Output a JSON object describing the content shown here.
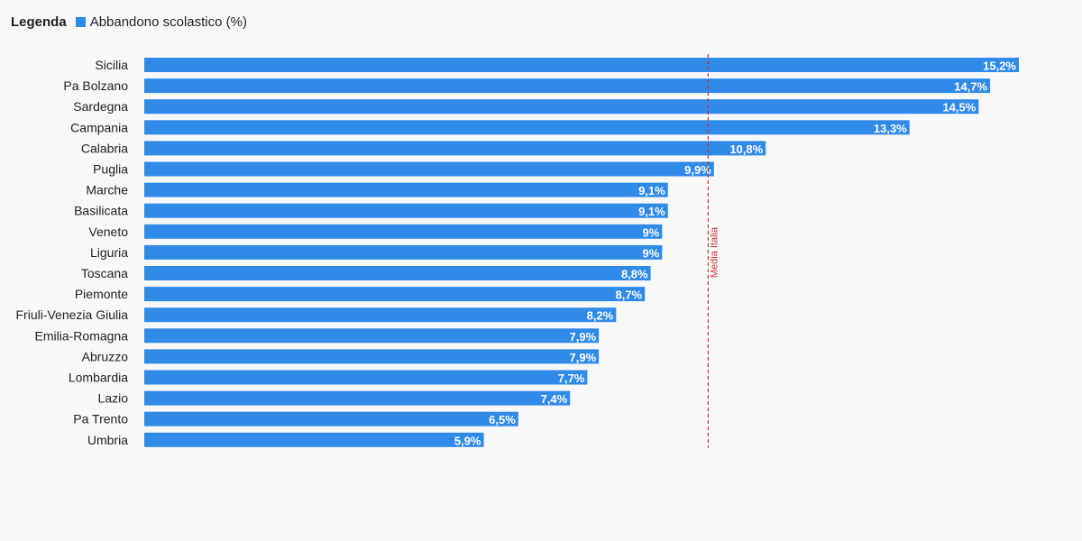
{
  "legend": {
    "title": "Legenda",
    "entry": "Abbandono scolastico (%)"
  },
  "colors": {
    "bar": "#2f8ae8",
    "reference_line": "#c8313c",
    "background": "#f8f8f8"
  },
  "chart_data": {
    "type": "bar",
    "orientation": "horizontal",
    "categories": [
      "Sicilia",
      "Pa Bolzano",
      "Sardegna",
      "Campania",
      "Calabria",
      "Puglia",
      "Marche",
      "Basilicata",
      "Veneto",
      "Liguria",
      "Toscana",
      "Piemonte",
      "Friuli-Venezia Giulia",
      "Emilia-Romagna",
      "Abruzzo",
      "Lombardia",
      "Lazio",
      "Pa Trento",
      "Umbria"
    ],
    "series": [
      {
        "name": "Abbandono scolastico (%)",
        "values": [
          15.2,
          14.7,
          14.5,
          13.3,
          10.8,
          9.9,
          9.1,
          9.1,
          9,
          9,
          8.8,
          8.7,
          8.2,
          7.9,
          7.9,
          7.7,
          7.4,
          6.5,
          5.9
        ]
      }
    ],
    "data_labels": [
      "15,2%",
      "14,7%",
      "14,5%",
      "13,3%",
      "10,8%",
      "9,9%",
      "9,1%",
      "9,1%",
      "9%",
      "9%",
      "8,8%",
      "8,7%",
      "8,2%",
      "7,9%",
      "7,9%",
      "7,7%",
      "7,4%",
      "6,5%",
      "5,9%"
    ],
    "reference_line": {
      "label": "Media Italia",
      "value": 9.8
    },
    "xlim": [
      0,
      15.2
    ],
    "grid": false,
    "legend_position": "top-left",
    "title": "",
    "xlabel": "",
    "ylabel": ""
  }
}
